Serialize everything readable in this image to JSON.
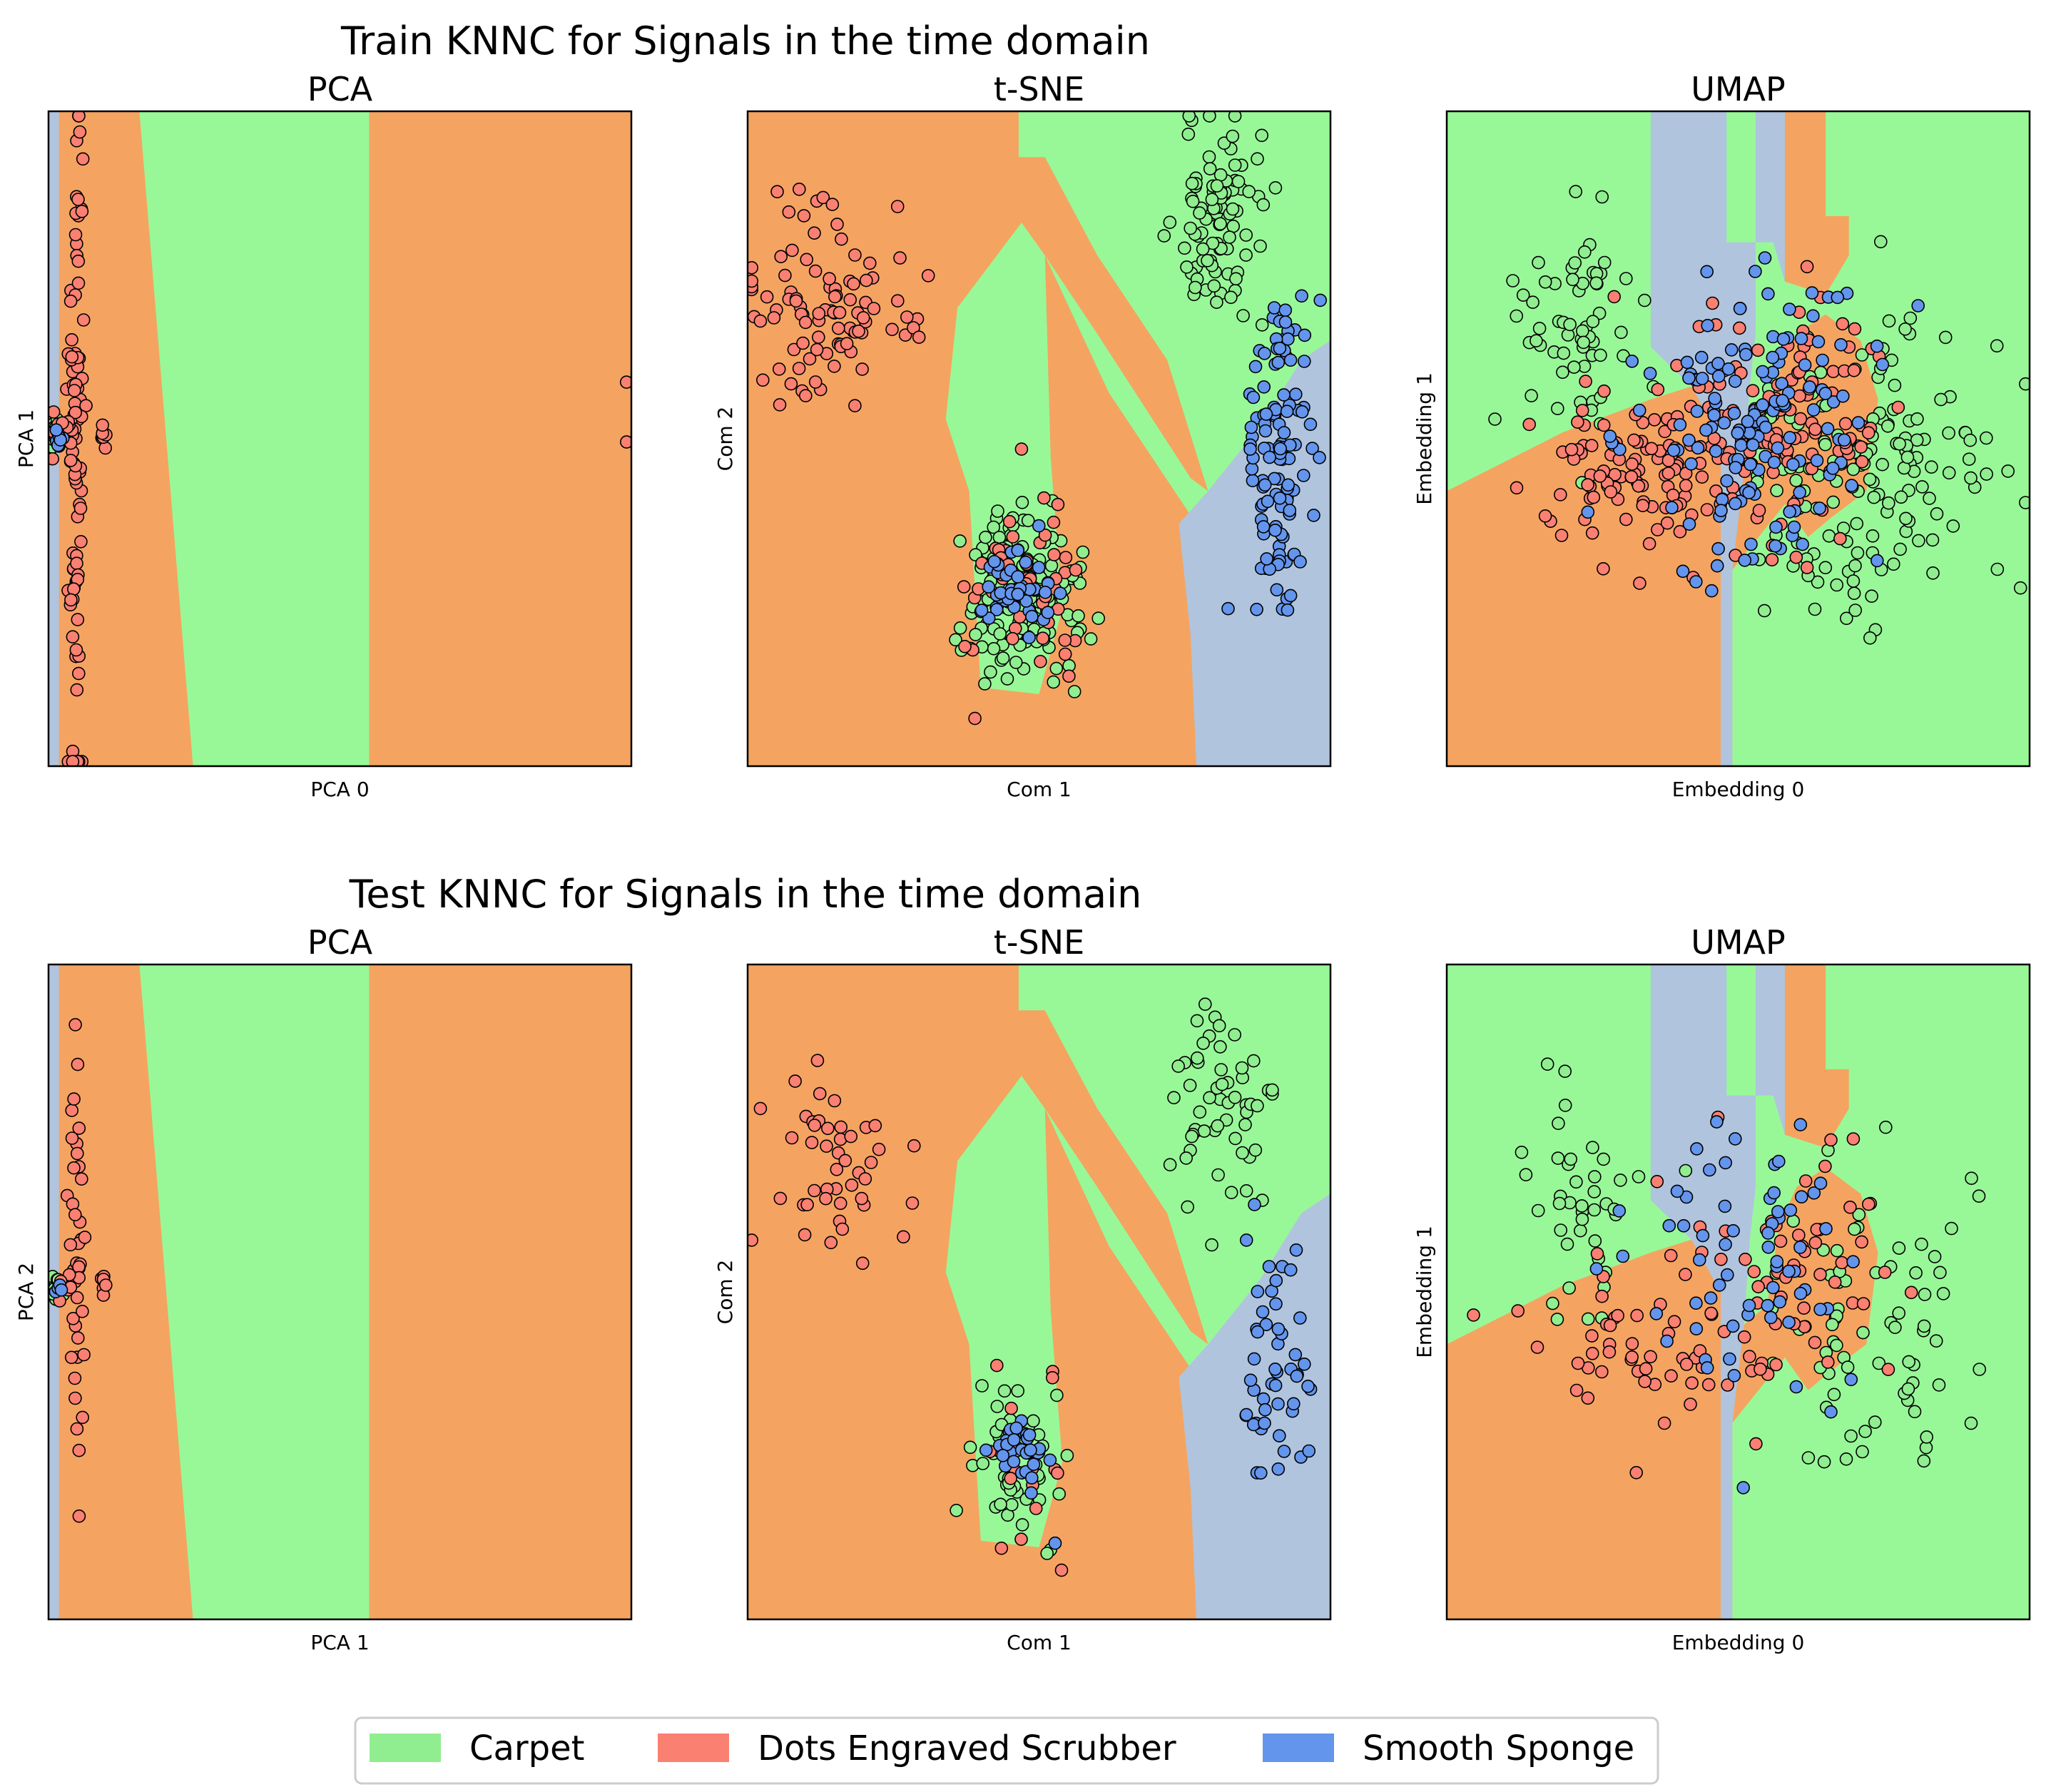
{
  "figure": {
    "suptitles": [
      "Train KNNC for Signals in the time domain",
      "Test KNNC for Signals in the time domain"
    ],
    "legend_placement": "bottom-center"
  },
  "legend": {
    "items": [
      {
        "label": "Carpet",
        "color": "#90ee90"
      },
      {
        "label": "Dots Engraved Scrubber",
        "color": "#fa8072"
      },
      {
        "label": "Smooth Sponge",
        "color": "#6495ed"
      }
    ]
  },
  "colors": {
    "region_carpet": "#98f898",
    "region_scrubber": "#f4a460",
    "region_sponge": "#b0c4de",
    "point_carpet": "#90ee90",
    "point_scrubber": "#fa8072",
    "point_sponge": "#6495ed"
  },
  "chart_data": [
    {
      "type": "scatter",
      "row": "train",
      "method": "pca",
      "title": "PCA",
      "xlabel": "PCA 0",
      "ylabel": "PCA 1",
      "xlim": [
        0,
        100
      ],
      "ylim": [
        0,
        100
      ],
      "ticks_shown": false,
      "region_profile": "pca",
      "series": [
        {
          "name": "Carpet",
          "clusters": [
            {
              "cx": 1.2,
              "cy": 50.5,
              "sx": 0.6,
              "sy": 1.0,
              "n": 26
            }
          ]
        },
        {
          "name": "Dots Engraved Scrubber",
          "clusters": [
            {
              "cx": 4.8,
              "cy": 51,
              "sx": 0.7,
              "sy": 26,
              "n": 90
            },
            {
              "cx": 2.8,
              "cy": 51,
              "sx": 1.2,
              "sy": 2.0,
              "n": 14
            },
            {
              "cx": 9.5,
              "cy": 50.5,
              "sx": 0.3,
              "sy": 1.0,
              "n": 8
            },
            {
              "cx": 99.2,
              "cy": 58.5,
              "sx": 0.05,
              "sy": 0.05,
              "n": 1
            },
            {
              "cx": 99.2,
              "cy": 49.5,
              "sx": 0.05,
              "sy": 0.05,
              "n": 1
            }
          ]
        },
        {
          "name": "Smooth Sponge",
          "clusters": [
            {
              "cx": 1.5,
              "cy": 50.5,
              "sx": 0.5,
              "sy": 0.6,
              "n": 8
            }
          ]
        }
      ]
    },
    {
      "type": "scatter",
      "row": "train",
      "method": "tsne",
      "title": "t-SNE",
      "xlabel": "Com 1",
      "ylabel": "Com 2",
      "xlim": [
        0,
        100
      ],
      "ylim": [
        0,
        100
      ],
      "ticks_shown": false,
      "region_profile": "tsne",
      "series": [
        {
          "name": "Carpet",
          "clusters": [
            {
              "cx": 81,
              "cy": 83,
              "sx": 4,
              "sy": 8,
              "n": 95
            },
            {
              "cx": 48,
              "cy": 26,
              "sx": 5,
              "sy": 7,
              "n": 150
            }
          ]
        },
        {
          "name": "Dots Engraved Scrubber",
          "clusters": [
            {
              "cx": 14,
              "cy": 70,
              "sx": 7,
              "sy": 8,
              "n": 95
            },
            {
              "cx": 47,
              "cy": 26,
              "sx": 5,
              "sy": 7,
              "n": 55
            }
          ]
        },
        {
          "name": "Smooth Sponge",
          "clusters": [
            {
              "cx": 91,
              "cy": 48,
              "sx": 3,
              "sy": 12,
              "n": 115
            },
            {
              "cx": 46,
              "cy": 27,
              "sx": 3,
              "sy": 3,
              "n": 45
            }
          ]
        }
      ]
    },
    {
      "type": "scatter",
      "row": "train",
      "method": "umap",
      "title": "UMAP",
      "xlabel": "Embedding 0",
      "ylabel": "Embedding 1",
      "xlim": [
        0,
        100
      ],
      "ylim": [
        0,
        100
      ],
      "ticks_shown": false,
      "region_profile": "umap",
      "series": [
        {
          "name": "Carpet",
          "clusters": [
            {
              "cx": 21,
              "cy": 66,
              "sx": 5,
              "sy": 8,
              "n": 60
            },
            {
              "cx": 72,
              "cy": 44,
              "sx": 10,
              "sy": 12,
              "n": 150
            }
          ]
        },
        {
          "name": "Dots Engraved Scrubber",
          "clusters": [
            {
              "cx": 33,
              "cy": 44,
              "sx": 9,
              "sy": 7,
              "n": 110
            },
            {
              "cx": 58,
              "cy": 54,
              "sx": 9,
              "sy": 10,
              "n": 110
            }
          ]
        },
        {
          "name": "Smooth Sponge",
          "clusters": [
            {
              "cx": 52,
              "cy": 54,
              "sx": 11,
              "sy": 11,
              "n": 150
            }
          ]
        }
      ]
    },
    {
      "type": "scatter",
      "row": "test",
      "method": "pca",
      "title": "PCA",
      "xlabel": "PCA 1",
      "ylabel": "PCA 2",
      "xlim": [
        0,
        100
      ],
      "ylim": [
        0,
        100
      ],
      "ticks_shown": false,
      "region_profile": "pca",
      "series": [
        {
          "name": "Carpet",
          "clusters": [
            {
              "cx": 1.2,
              "cy": 50.5,
              "sx": 0.6,
              "sy": 1.0,
              "n": 12
            }
          ]
        },
        {
          "name": "Dots Engraved Scrubber",
          "clusters": [
            {
              "cx": 4.8,
              "cy": 53,
              "sx": 0.7,
              "sy": 18,
              "n": 40
            },
            {
              "cx": 2.8,
              "cy": 51,
              "sx": 1.2,
              "sy": 2.0,
              "n": 6
            },
            {
              "cx": 9.5,
              "cy": 50.5,
              "sx": 0.3,
              "sy": 1.0,
              "n": 6
            }
          ]
        },
        {
          "name": "Smooth Sponge",
          "clusters": [
            {
              "cx": 1.5,
              "cy": 50.5,
              "sx": 0.5,
              "sy": 0.6,
              "n": 4
            }
          ]
        }
      ]
    },
    {
      "type": "scatter",
      "row": "test",
      "method": "tsne",
      "title": "t-SNE",
      "xlabel": "Com 1",
      "ylabel": "Com 2",
      "xlim": [
        0,
        100
      ],
      "ylim": [
        0,
        100
      ],
      "ticks_shown": false,
      "region_profile": "tsne",
      "series": [
        {
          "name": "Carpet",
          "clusters": [
            {
              "cx": 81,
              "cy": 78,
              "sx": 4,
              "sy": 8,
              "n": 55
            },
            {
              "cx": 47,
              "cy": 24,
              "sx": 5,
              "sy": 7,
              "n": 45
            }
          ]
        },
        {
          "name": "Dots Engraved Scrubber",
          "clusters": [
            {
              "cx": 15,
              "cy": 70,
              "sx": 6,
              "sy": 8,
              "n": 45
            },
            {
              "cx": 48,
              "cy": 24,
              "sx": 5,
              "sy": 7,
              "n": 18
            }
          ]
        },
        {
          "name": "Smooth Sponge",
          "clusters": [
            {
              "cx": 91,
              "cy": 38,
              "sx": 3,
              "sy": 10,
              "n": 50
            },
            {
              "cx": 47,
              "cy": 25,
              "sx": 3,
              "sy": 3,
              "n": 30
            }
          ]
        }
      ]
    },
    {
      "type": "scatter",
      "row": "test",
      "method": "umap",
      "title": "UMAP",
      "xlabel": "Embedding 0",
      "ylabel": "Embedding 1",
      "xlim": [
        0,
        100
      ],
      "ylim": [
        0,
        100
      ],
      "ticks_shown": false,
      "region_profile": "umap",
      "series": [
        {
          "name": "Carpet",
          "clusters": [
            {
              "cx": 22,
              "cy": 64,
              "sx": 5,
              "sy": 8,
              "n": 40
            },
            {
              "cx": 73,
              "cy": 44,
              "sx": 10,
              "sy": 12,
              "n": 70
            }
          ]
        },
        {
          "name": "Dots Engraved Scrubber",
          "clusters": [
            {
              "cx": 34,
              "cy": 42,
              "sx": 9,
              "sy": 7,
              "n": 50
            },
            {
              "cx": 58,
              "cy": 55,
              "sx": 9,
              "sy": 10,
              "n": 55
            }
          ]
        },
        {
          "name": "Smooth Sponge",
          "clusters": [
            {
              "cx": 53,
              "cy": 55,
              "sx": 11,
              "sy": 10,
              "n": 65
            }
          ]
        }
      ]
    }
  ]
}
